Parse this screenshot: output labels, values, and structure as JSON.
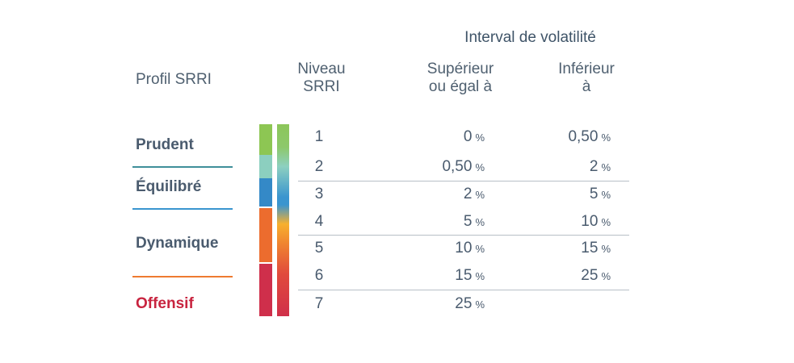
{
  "header": {
    "title": "Interval de volatilité",
    "profile_col": "Profil SRRI",
    "level_col_line1": "Niveau",
    "level_col_line2": "SRRI",
    "sup_col_line1": "Supérieur",
    "sup_col_line2": "ou égal à",
    "inf_col_line1": "Inférieur",
    "inf_col_line2": "à"
  },
  "profiles": [
    {
      "name": "Prudent",
      "color": "#4a5b6e"
    },
    {
      "name": "Équilibré",
      "color": "#4a5b6e"
    },
    {
      "name": "Dynamique",
      "color": "#4a5b6e"
    },
    {
      "name": "Offensif",
      "color": "#c8243f"
    }
  ],
  "separator_colors": [
    "#3f8f9a",
    "#3a95cf",
    "#ee7a30"
  ],
  "segment_colors": [
    "#8dc653",
    "#8ccfbf",
    "#3489c7",
    "#ec6c2e",
    "#cf2f4b"
  ],
  "chart_data": {
    "type": "table",
    "title": "Interval de volatilité",
    "columns": [
      "Profil SRRI",
      "Niveau SRRI",
      "Supérieur ou égal à",
      "Inférieur à"
    ],
    "unit": "%",
    "rows": [
      {
        "level": "1",
        "min": "0",
        "max": "0,50"
      },
      {
        "level": "2",
        "min": "0,50",
        "max": "2"
      },
      {
        "level": "3",
        "min": "2",
        "max": "5"
      },
      {
        "level": "4",
        "min": "5",
        "max": "10"
      },
      {
        "level": "5",
        "min": "10",
        "max": "15"
      },
      {
        "level": "6",
        "min": "15",
        "max": "25"
      },
      {
        "level": "7",
        "min": "25",
        "max": ""
      }
    ]
  }
}
